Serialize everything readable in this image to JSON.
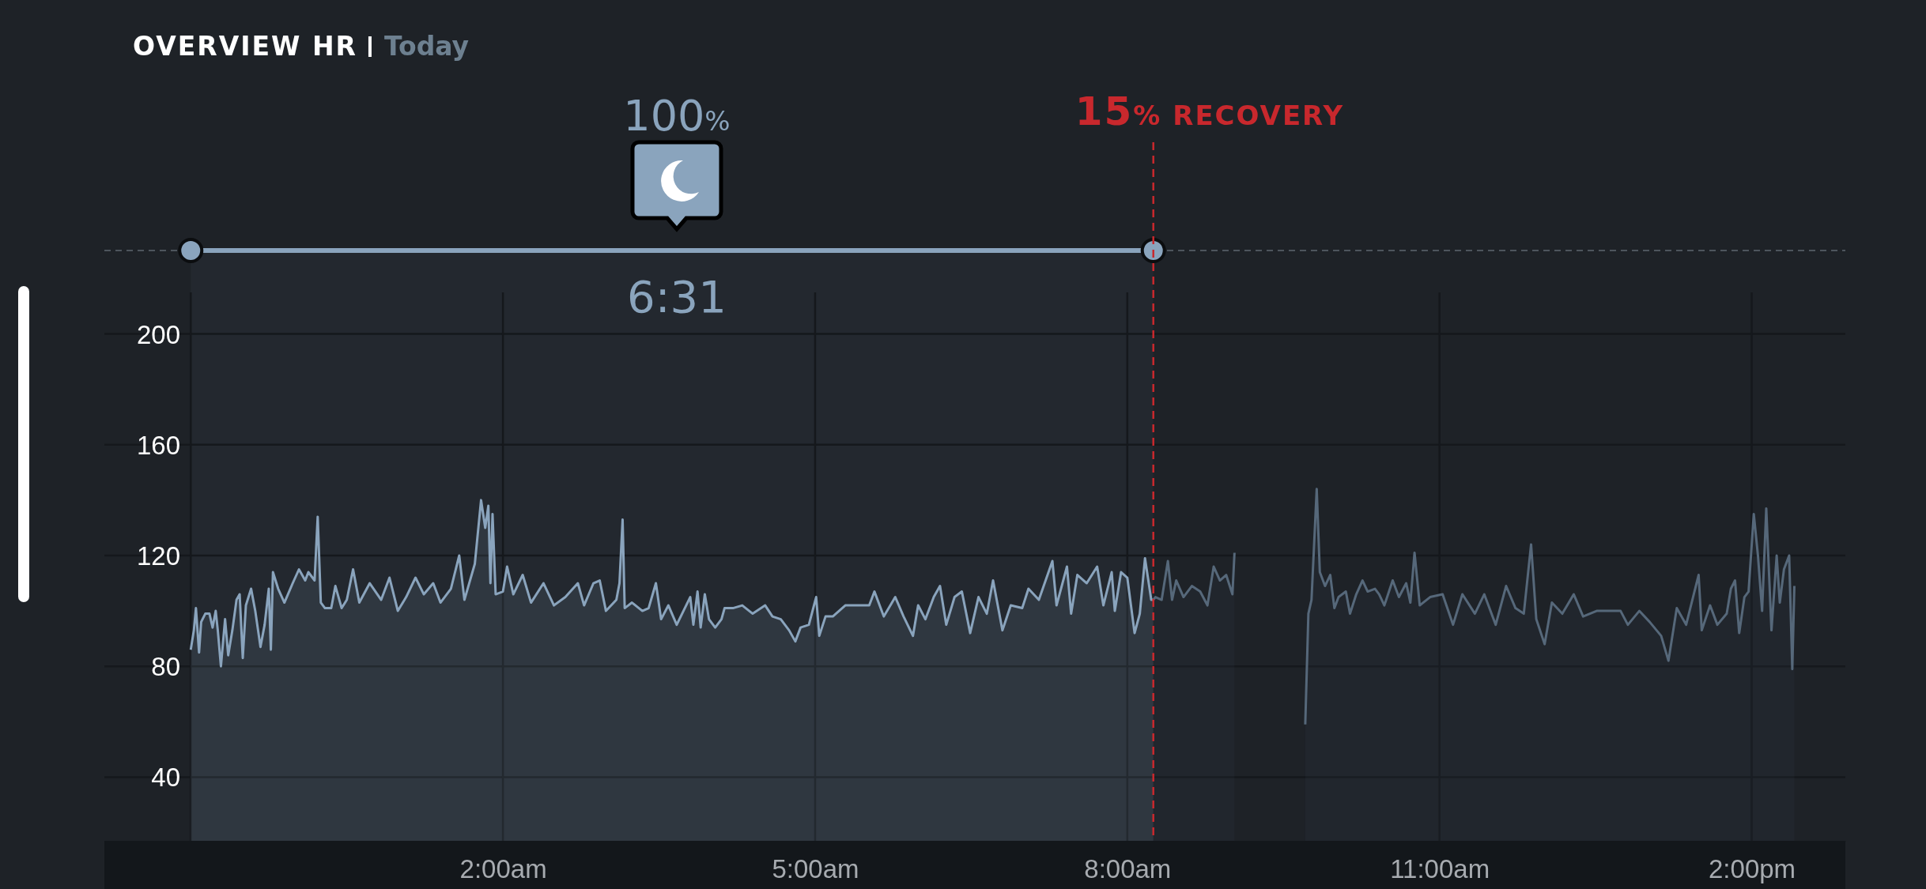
{
  "chart_data": {
    "type": "area",
    "title": "OVERVIEW HR",
    "subtitle": "Today",
    "xlim": [
      -1.83,
      14.9
    ],
    "ylim": [
      17,
      215
    ],
    "xticks": [
      {
        "value": -1,
        "label": null
      },
      {
        "value": 2,
        "label": "2:00am"
      },
      {
        "value": 5,
        "label": "5:00am"
      },
      {
        "value": 8,
        "label": "8:00am"
      },
      {
        "value": 11,
        "label": "11:00am"
      },
      {
        "value": 14,
        "label": "2:00pm"
      }
    ],
    "yticks": [
      40,
      80,
      120,
      160,
      200
    ],
    "grid": true,
    "series": [
      {
        "color": "#8aa4bd",
        "x": [
          -1.0,
          -0.97,
          -0.95,
          -0.92,
          -0.9,
          -0.86,
          -0.82,
          -0.79,
          -0.76,
          -0.74,
          -0.71,
          -0.67,
          -0.64,
          -0.6,
          -0.56,
          -0.53,
          -0.5,
          -0.47,
          -0.42,
          -0.38,
          -0.33,
          -0.29,
          -0.25,
          -0.23,
          -0.21,
          -0.16,
          -0.1,
          -0.02,
          0.04,
          0.1,
          0.13,
          0.19,
          0.22,
          0.25,
          0.29,
          0.35,
          0.39,
          0.45,
          0.5,
          0.56,
          0.62,
          0.72,
          0.83,
          0.91,
          0.99,
          1.07,
          1.16,
          1.24,
          1.33,
          1.4,
          1.5,
          1.58,
          1.63,
          1.73,
          1.79,
          1.83,
          1.86,
          1.88,
          1.9,
          1.93,
          2.0,
          2.04,
          2.1,
          2.19,
          2.27,
          2.39,
          2.49,
          2.6,
          2.72,
          2.78,
          2.87,
          2.93,
          2.99,
          3.09,
          3.12,
          3.15,
          3.17,
          3.24,
          3.34,
          3.4,
          3.47,
          3.52,
          3.59,
          3.67,
          3.8,
          3.83,
          3.87,
          3.9,
          3.94,
          3.98,
          4.04,
          4.1,
          4.13,
          4.21,
          4.3,
          4.4,
          4.52,
          4.59,
          4.67,
          4.75,
          4.81,
          4.86,
          4.94,
          5.01,
          5.04,
          5.1,
          5.17,
          5.29,
          5.41,
          5.52,
          5.57,
          5.66,
          5.77,
          5.85,
          5.94,
          5.99,
          6.06,
          6.14,
          6.2,
          6.26,
          6.34,
          6.41,
          6.49,
          6.57,
          6.65,
          6.71,
          6.8,
          6.88,
          6.99,
          7.05,
          7.15,
          7.28,
          7.32,
          7.42,
          7.46,
          7.52,
          7.61,
          7.71,
          7.77,
          7.85,
          7.88,
          7.94,
          8.0,
          8.07,
          8.12,
          8.17,
          8.23,
          8.25
        ],
        "values": [
          86,
          93,
          101,
          85,
          96,
          99,
          99,
          94,
          100,
          93,
          80,
          97,
          84,
          93,
          104,
          106,
          83,
          102,
          108,
          100,
          87,
          95,
          108,
          86,
          114,
          108,
          103,
          110,
          115,
          111,
          114,
          111,
          134,
          103,
          101,
          101,
          109,
          101,
          104,
          115,
          103,
          110,
          104,
          112,
          100,
          105,
          112,
          106,
          110,
          103,
          108,
          120,
          104,
          117,
          140,
          130,
          138,
          110,
          135,
          106,
          107,
          116,
          106,
          113,
          103,
          110,
          102,
          105,
          110,
          102,
          110,
          111,
          100,
          104,
          110,
          133,
          101,
          103,
          100,
          101,
          110,
          97,
          102,
          95,
          105,
          95,
          107,
          94,
          106,
          97,
          94,
          97,
          101,
          101,
          102,
          99,
          102,
          98,
          97,
          93,
          89,
          94,
          95,
          105,
          91,
          98,
          98,
          102,
          102,
          102,
          107,
          98,
          105,
          98,
          91,
          102,
          97,
          105,
          109,
          95,
          105,
          107,
          92,
          105,
          99,
          111,
          93,
          102,
          101,
          108,
          104,
          118,
          102,
          116,
          99,
          113,
          110,
          116,
          102,
          114,
          100,
          114,
          112,
          92,
          99,
          119,
          104,
          104
        ]
      },
      {
        "color": "#56687a",
        "x": [
          8.25,
          8.27,
          8.33,
          8.39,
          8.43,
          8.47,
          8.54,
          8.62,
          8.7,
          8.77,
          8.83,
          8.89,
          8.95,
          9.01,
          9.03,
          9.3,
          9.71,
          9.74,
          9.77,
          9.82,
          9.85,
          9.9,
          9.95,
          9.99,
          10.03,
          10.1,
          10.14,
          10.2,
          10.26,
          10.31,
          10.38,
          10.42,
          10.47,
          10.55,
          10.61,
          10.68,
          10.72,
          10.76,
          10.81,
          10.91,
          11.03,
          11.13,
          11.22,
          11.34,
          11.43,
          11.54,
          11.64,
          11.73,
          11.81,
          11.88,
          11.93,
          12.01,
          12.08,
          12.18,
          12.29,
          12.38,
          12.51,
          12.64,
          12.74,
          12.81,
          12.92,
          13.02,
          13.13,
          13.2,
          13.28,
          13.37,
          13.49,
          13.52,
          13.6,
          13.67,
          13.76,
          13.8,
          13.84,
          13.88,
          13.93,
          13.97,
          14.02,
          14.06,
          14.1,
          14.14,
          14.19,
          14.24,
          14.27,
          14.31,
          14.36,
          14.39,
          14.41
        ],
        "values": [
          104,
          105,
          104,
          118,
          104,
          111,
          105,
          109,
          107,
          102,
          116,
          111,
          113,
          106,
          121,
          null,
          59,
          99,
          104,
          144,
          114,
          109,
          113,
          101,
          105,
          107,
          99,
          106,
          111,
          107,
          108,
          106,
          102,
          111,
          105,
          110,
          103,
          121,
          102,
          105,
          106,
          95,
          106,
          99,
          106,
          95,
          109,
          101,
          99,
          124,
          97,
          88,
          103,
          99,
          106,
          98,
          100,
          100,
          100,
          95,
          100,
          96,
          91,
          82,
          101,
          95,
          113,
          93,
          102,
          95,
          99,
          108,
          111,
          92,
          105,
          107,
          135,
          120,
          100,
          137,
          93,
          120,
          103,
          115,
          120,
          79,
          109
        ]
      }
    ],
    "ref_lines": [
      {
        "axis": "x",
        "value": 8.25,
        "label": "15% RECOVERY",
        "color": "#c8282d",
        "line_style": "dashed"
      }
    ],
    "bands": [
      {
        "axis": "x",
        "from": -1,
        "to": 8.25,
        "label": "6:31",
        "color": "#8aa4bd"
      }
    ],
    "annotations": [
      "100%"
    ]
  }
}
